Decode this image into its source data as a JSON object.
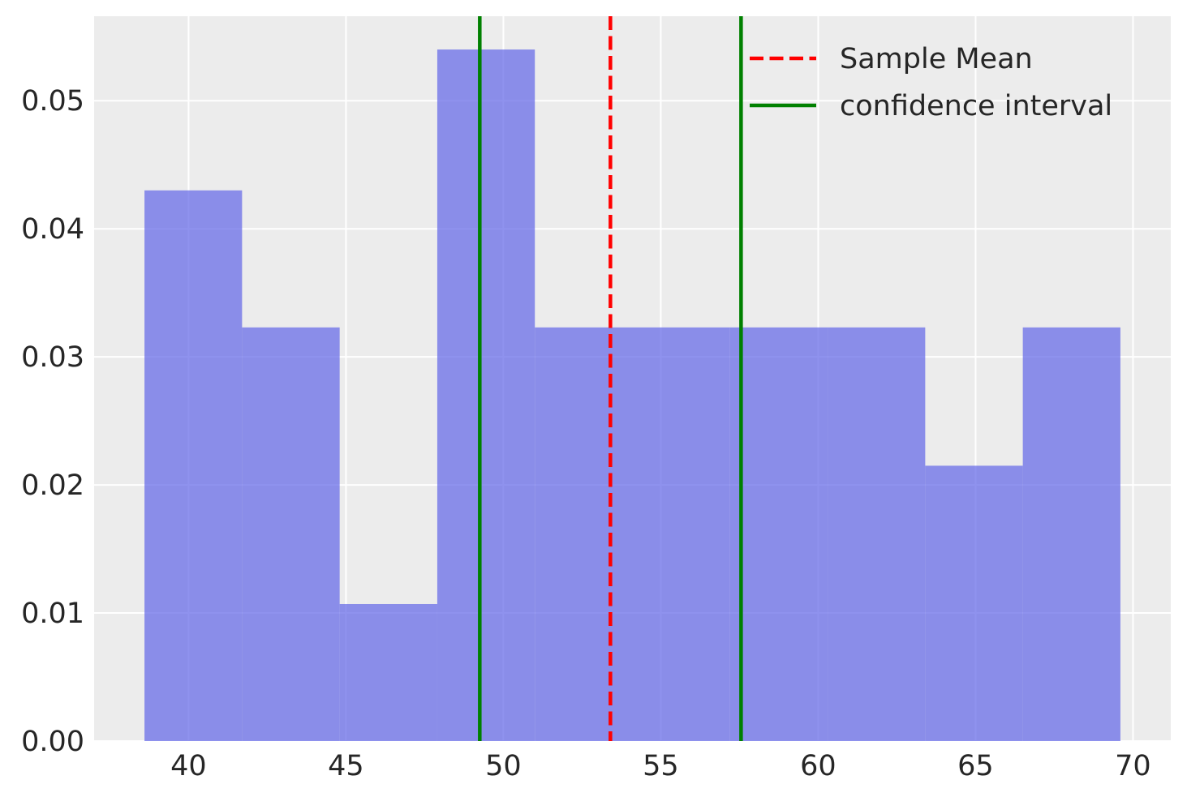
{
  "chart_data": {
    "type": "bar",
    "subtype": "histogram",
    "bins": [
      {
        "start": 38.6,
        "end": 41.7,
        "density": 0.043
      },
      {
        "start": 41.7,
        "end": 44.8,
        "density": 0.0323
      },
      {
        "start": 44.8,
        "end": 47.9,
        "density": 0.0107
      },
      {
        "start": 47.9,
        "end": 51.0,
        "density": 0.054
      },
      {
        "start": 51.0,
        "end": 54.1,
        "density": 0.0323
      },
      {
        "start": 54.1,
        "end": 57.2,
        "density": 0.0323
      },
      {
        "start": 57.2,
        "end": 60.3,
        "density": 0.0323
      },
      {
        "start": 60.3,
        "end": 63.4,
        "density": 0.0323
      },
      {
        "start": 63.4,
        "end": 66.5,
        "density": 0.0215
      },
      {
        "start": 66.5,
        "end": 69.6,
        "density": 0.0323
      }
    ],
    "vlines": [
      {
        "name": "Sample Mean",
        "x": 53.4,
        "style": "dashed",
        "color": "#ff0000"
      },
      {
        "name": "confidence interval",
        "x": 49.25,
        "style": "solid",
        "color": "#008000"
      },
      {
        "name": "",
        "x": 57.55,
        "style": "solid",
        "color": "#008000"
      }
    ],
    "xlim": [
      37.0,
      71.2
    ],
    "ylim": [
      0.0,
      0.0566
    ],
    "xticks": [
      40,
      45,
      50,
      55,
      60,
      65,
      70
    ],
    "xtick_labels": [
      "40",
      "45",
      "50",
      "55",
      "60",
      "65",
      "70"
    ],
    "yticks": [
      0.0,
      0.01,
      0.02,
      0.03,
      0.04,
      0.05
    ],
    "ytick_labels": [
      "0.00",
      "0.01",
      "0.02",
      "0.03",
      "0.04",
      "0.05"
    ],
    "title": "",
    "xlabel": "",
    "ylabel": "",
    "grid": true,
    "legend": {
      "position": "top-right",
      "entries": [
        "Sample Mean",
        "confidence interval"
      ]
    },
    "colors": {
      "bars": "#6a6ee8",
      "bar_alpha": 0.75,
      "plot_background": "#ececec",
      "grid": "#ffffff",
      "mean_line": "#ff0000",
      "ci_line": "#008000"
    }
  }
}
